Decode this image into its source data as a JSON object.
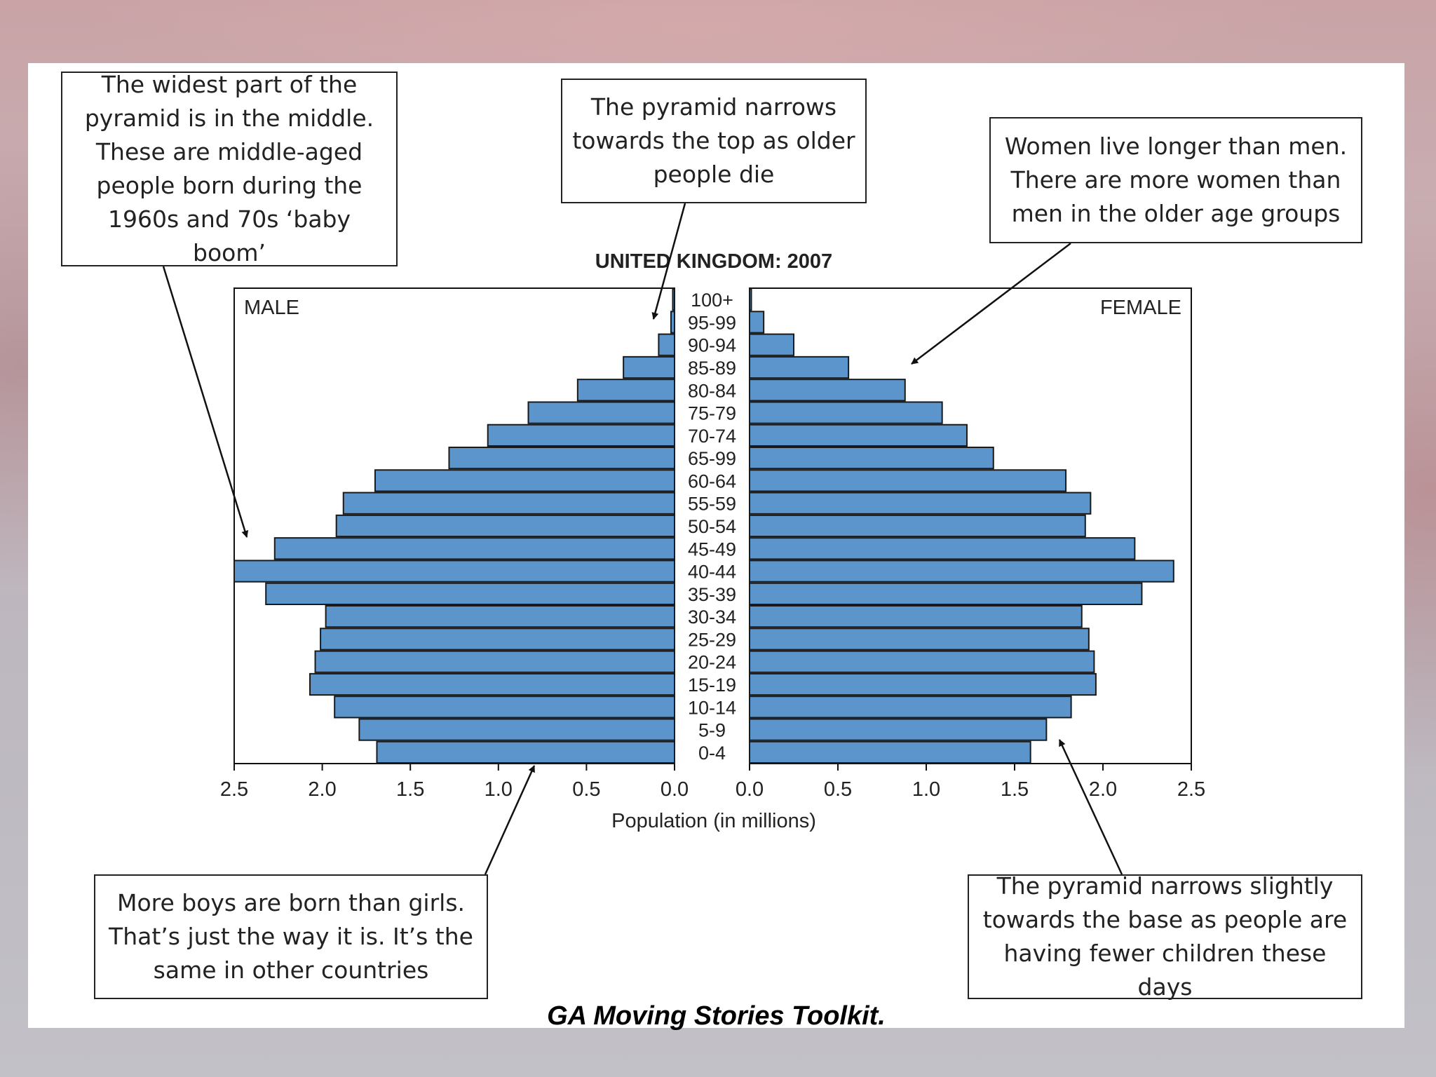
{
  "chart_data": {
    "type": "bar",
    "orientation": "horizontal",
    "subtype": "population-pyramid",
    "title": "UNITED KINGDOM: 2007",
    "xlabel": "Population (in millions)",
    "panel_labels": {
      "male": "MALE",
      "female": "FEMALE"
    },
    "xlim": [
      0,
      2.5
    ],
    "x_ticks_male": [
      "2.5",
      "2.0",
      "1.5",
      "1.0",
      "0.5",
      "0.0"
    ],
    "x_ticks_female": [
      "0.0",
      "0.5",
      "1.0",
      "1.5",
      "2.0",
      "2.5"
    ],
    "categories": [
      "100+",
      "95-99",
      "90-94",
      "85-89",
      "80-84",
      "75-79",
      "70-74",
      "65-99",
      "60-64",
      "55-59",
      "50-54",
      "45-49",
      "40-44",
      "35-39",
      "30-34",
      "25-29",
      "20-24",
      "15-19",
      "10-14",
      "5-9",
      "0-4"
    ],
    "series": [
      {
        "name": "MALE",
        "values": [
          0.01,
          0.02,
          0.09,
          0.29,
          0.55,
          0.83,
          1.06,
          1.28,
          1.7,
          1.88,
          1.92,
          2.27,
          2.5,
          2.32,
          1.98,
          2.01,
          2.04,
          2.07,
          1.93,
          1.79,
          1.69
        ]
      },
      {
        "name": "FEMALE",
        "values": [
          0.01,
          0.08,
          0.25,
          0.56,
          0.88,
          1.09,
          1.23,
          1.38,
          1.79,
          1.93,
          1.9,
          2.18,
          2.4,
          2.22,
          1.88,
          1.92,
          1.95,
          1.96,
          1.82,
          1.68,
          1.59
        ]
      }
    ],
    "bar_color": "#5b95cc",
    "grid": false
  },
  "annotations": [
    {
      "id": "middle-widest",
      "text": [
        "The widest part of the",
        "pyramid is in the middle.",
        "These are middle-aged",
        "people born during the",
        "1960s and 70s ‘baby boom’"
      ]
    },
    {
      "id": "narrows-top",
      "text": [
        "The pyramid narrows",
        "towards the top as older",
        "people die"
      ]
    },
    {
      "id": "women-longer",
      "text": [
        "Women live longer than men.",
        "There are more women than",
        "men in the older age groups"
      ]
    },
    {
      "id": "more-boys",
      "text": [
        "More boys are born than girls.",
        "That’s just the way it is. It’s the",
        "same in other countries"
      ]
    },
    {
      "id": "narrows-base",
      "text": [
        "The pyramid narrows slightly",
        "towards the base as people are",
        "having fewer children these days"
      ]
    }
  ],
  "caption": "GA Moving Stories Toolkit."
}
